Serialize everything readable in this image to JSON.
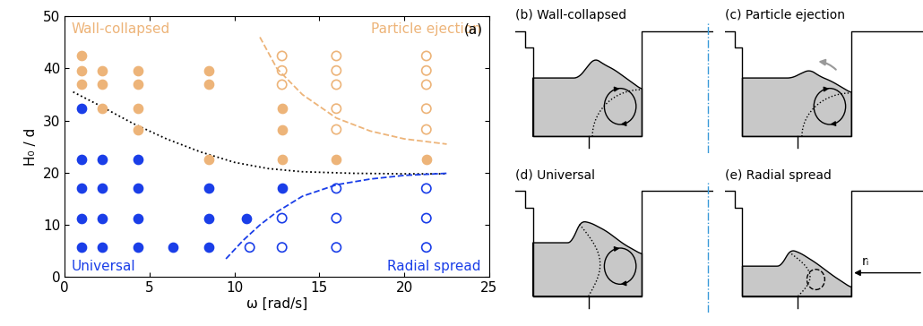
{
  "chart_data": {
    "type": "scatter",
    "panel_label": "(a)",
    "x_label": "ω [rad/s]",
    "y_label": "H₀ / d",
    "xlim": [
      0,
      25
    ],
    "xticks": [
      0,
      5,
      10,
      15,
      20,
      25
    ],
    "ylim": [
      0,
      50
    ],
    "yticks": [
      0,
      10,
      20,
      30,
      40,
      50
    ],
    "series": [
      {
        "name": "Wall-collapsed",
        "type": "scatter",
        "color": "#EDB479",
        "marker": "filled_circle",
        "x": [
          1.0,
          1.0,
          1.0,
          2.2,
          2.2,
          2.2,
          4.3,
          4.3,
          4.3,
          4.3,
          8.5,
          8.5,
          8.5,
          12.8,
          12.8,
          12.8,
          16.0,
          21.3
        ],
        "y": [
          36.9,
          39.6,
          42.4,
          32.3,
          36.9,
          39.6,
          28.3,
          32.3,
          36.9,
          39.6,
          22.6,
          36.9,
          39.6,
          22.6,
          28.3,
          32.3,
          22.6,
          22.6
        ]
      },
      {
        "name": "Particle ejection",
        "type": "scatter",
        "color": "#EDB479",
        "marker": "open_circle",
        "x": [
          12.8,
          12.8,
          12.8,
          16.0,
          16.0,
          16.0,
          16.0,
          16.0,
          21.3,
          21.3,
          21.3,
          21.3,
          21.3
        ],
        "y": [
          36.9,
          39.6,
          42.4,
          28.3,
          32.3,
          36.9,
          39.6,
          42.4,
          28.3,
          32.3,
          36.9,
          39.6,
          42.4
        ]
      },
      {
        "name": "Universal",
        "type": "scatter",
        "color": "#1A3EE8",
        "marker": "filled_circle",
        "x": [
          1.0,
          1.0,
          1.0,
          1.0,
          1.0,
          2.2,
          2.2,
          2.2,
          2.2,
          4.3,
          4.3,
          4.3,
          4.3,
          6.4,
          8.5,
          8.5,
          8.5,
          10.7,
          12.8
        ],
        "y": [
          5.7,
          11.3,
          17.0,
          22.6,
          32.3,
          5.7,
          11.3,
          17.0,
          22.6,
          5.7,
          11.3,
          17.0,
          22.6,
          5.7,
          5.7,
          11.3,
          17.0,
          11.3,
          17.0
        ]
      },
      {
        "name": "Radial spread",
        "type": "scatter",
        "color": "#1A3EE8",
        "marker": "open_circle",
        "x": [
          10.9,
          12.8,
          12.8,
          16.0,
          16.0,
          16.0,
          21.3,
          21.3,
          21.3
        ],
        "y": [
          5.7,
          5.7,
          11.3,
          5.7,
          11.3,
          17.0,
          5.7,
          11.3,
          17.0
        ]
      },
      {
        "type": "line",
        "color": "#000000",
        "line_style": "dotted",
        "x": [
          0.5,
          2,
          4,
          6,
          8,
          10,
          12,
          14,
          17,
          20,
          22.5
        ],
        "y": [
          35.5,
          33,
          29.5,
          26.5,
          24,
          22,
          20.8,
          20.2,
          19.9,
          19.8,
          19.8
        ]
      },
      {
        "type": "line",
        "color": "#EDB479",
        "line_style": "dashed",
        "x": [
          11.5,
          12.5,
          14,
          16,
          18,
          20,
          22.5
        ],
        "y": [
          46,
          40,
          35,
          30.5,
          28,
          26.5,
          25.5
        ]
      },
      {
        "type": "line",
        "color": "#1A3EE8",
        "line_style": "dashed",
        "x": [
          9.5,
          10.5,
          11.5,
          12.5,
          14,
          16,
          18,
          20,
          22.5
        ],
        "y": [
          3.5,
          7,
          10,
          12.5,
          15.5,
          17.7,
          18.8,
          19.5,
          19.9
        ]
      }
    ]
  },
  "diagrams": [
    {
      "title": "(b) Wall-collapsed"
    },
    {
      "title": "(c) Particle ejection"
    },
    {
      "title": "(d) Universal"
    },
    {
      "title": "(e) Radial spread",
      "label": "rᵢ"
    }
  ]
}
